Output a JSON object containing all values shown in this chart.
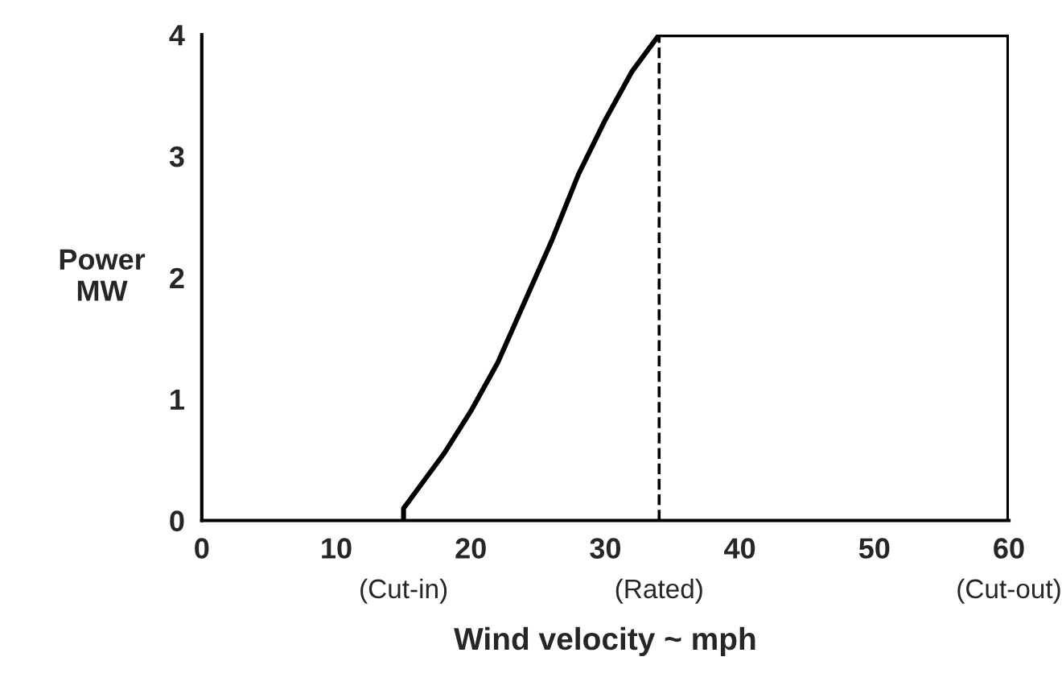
{
  "chart_data": {
    "type": "line",
    "xlabel": "Wind velocity ~ mph",
    "ylabel": "Power\nMW",
    "x": [
      15,
      15,
      16,
      18,
      20,
      22,
      24,
      26,
      28,
      30,
      32,
      34,
      60,
      60
    ],
    "series": [
      {
        "color": "#000000",
        "values": [
          0,
          0.1,
          0.25,
          0.55,
          0.9,
          1.3,
          1.8,
          2.3,
          2.85,
          3.3,
          3.7,
          4,
          4,
          0
        ]
      }
    ],
    "xlim": [
      0,
      60
    ],
    "ylim": [
      0,
      4
    ],
    "xticks": [
      0,
      10,
      20,
      30,
      40,
      50,
      60
    ],
    "yticks": [
      0,
      1,
      2,
      3,
      4
    ],
    "ref_lines": [
      {
        "axis": "x",
        "value": 34,
        "label": "(Rated)",
        "line_style": "dashed",
        "color": "#000000"
      }
    ],
    "annotations": [
      {
        "text": "(Cut-in)",
        "x": 15,
        "y": 0
      },
      {
        "text": "(Cut-out)",
        "x": 60,
        "y": 0
      }
    ],
    "grid": false,
    "legend": false,
    "marker": "none",
    "line_style": "solid"
  }
}
